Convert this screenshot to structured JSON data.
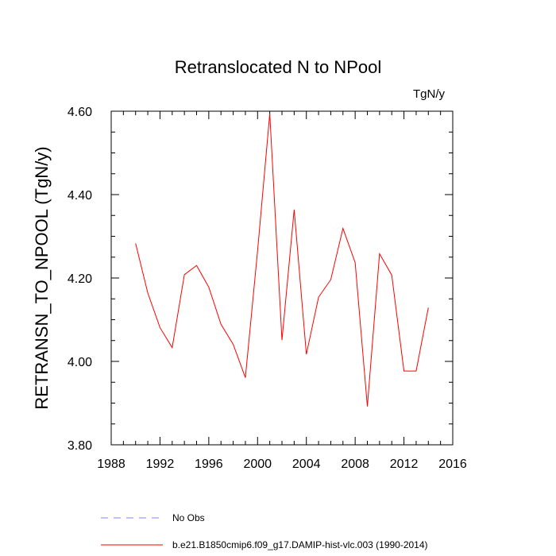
{
  "chart_data": {
    "type": "line",
    "title": "Retranslocated N to NPool",
    "units": "TgN/y",
    "ylabel": "RETRANSN_TO_NPOOL  (TgN/y)",
    "xlabel": "",
    "xlim": [
      1988,
      2016
    ],
    "ylim": [
      3.8,
      4.6
    ],
    "xticks": [
      1988,
      1992,
      1996,
      2000,
      2004,
      2008,
      2012,
      2016
    ],
    "yticks": [
      3.8,
      4.0,
      4.2,
      4.4,
      4.6
    ],
    "ytick_labels": [
      "3.80",
      "4.00",
      "4.20",
      "4.40",
      "4.60"
    ],
    "grid": false,
    "series": [
      {
        "name": "b.e21.B1850cmip6.f09_g17.DAMIP-hist-vlc.003 (1990-2014)",
        "color": "#ff0000",
        "dash": "solid",
        "x": [
          1990,
          1991,
          1992,
          1993,
          1994,
          1995,
          1996,
          1997,
          1998,
          1999,
          2000,
          2001,
          2002,
          2003,
          2004,
          2005,
          2006,
          2007,
          2008,
          2009,
          2010,
          2011,
          2012,
          2013,
          2014
        ],
        "values": [
          4.283,
          4.164,
          4.081,
          4.033,
          4.208,
          4.23,
          4.178,
          4.089,
          4.041,
          3.961,
          4.265,
          4.594,
          4.051,
          4.364,
          4.017,
          4.154,
          4.196,
          4.319,
          4.237,
          3.892,
          4.258,
          4.207,
          3.977,
          3.977,
          4.129
        ]
      }
    ],
    "legend": [
      {
        "label": "No Obs",
        "color": "#8080ff",
        "dash": "dashed"
      },
      {
        "label": "b.e21.B1850cmip6.f09_g17.DAMIP-hist-vlc.003 (1990-2014)",
        "color": "#ff0000",
        "dash": "solid"
      }
    ]
  }
}
